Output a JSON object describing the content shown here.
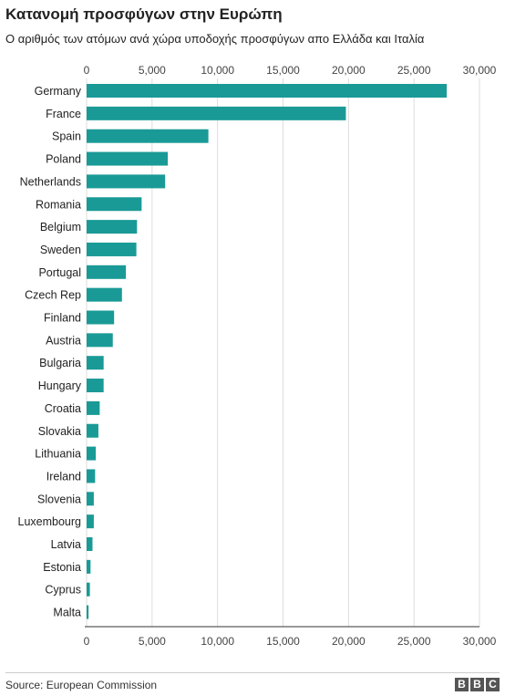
{
  "chart_data": {
    "type": "bar",
    "orientation": "horizontal",
    "title": "Κατανομή προσφύγων στην Ευρώπη",
    "subtitle": "Ο αριθμός των ατόμων ανά χώρα υποδοχής προσφύγων απο Ελλάδα και Ιταλία",
    "categories": [
      "Germany",
      "France",
      "Spain",
      "Poland",
      "Netherlands",
      "Romania",
      "Belgium",
      "Sweden",
      "Portugal",
      "Czech Rep",
      "Finland",
      "Austria",
      "Bulgaria",
      "Hungary",
      "Croatia",
      "Slovakia",
      "Lithuania",
      "Ireland",
      "Slovenia",
      "Luxembourg",
      "Latvia",
      "Estonia",
      "Cyprus",
      "Malta"
    ],
    "values": [
      27500,
      19800,
      9300,
      6200,
      6000,
      4200,
      3850,
      3800,
      3000,
      2700,
      2100,
      2000,
      1300,
      1300,
      1000,
      900,
      700,
      650,
      550,
      550,
      450,
      300,
      250,
      150
    ],
    "xlim": [
      0,
      30000
    ],
    "ticks": [
      0,
      5000,
      10000,
      15000,
      20000,
      25000,
      30000
    ],
    "tick_labels": [
      "0",
      "5,000",
      "10,000",
      "15,000",
      "20,000",
      "25,000",
      "30,000"
    ],
    "xlabel": "",
    "ylabel": "",
    "grid": true,
    "bar_color": "#1a9a96"
  },
  "footer": {
    "source": "Source: European Commission",
    "logo": [
      "B",
      "B",
      "C"
    ]
  }
}
